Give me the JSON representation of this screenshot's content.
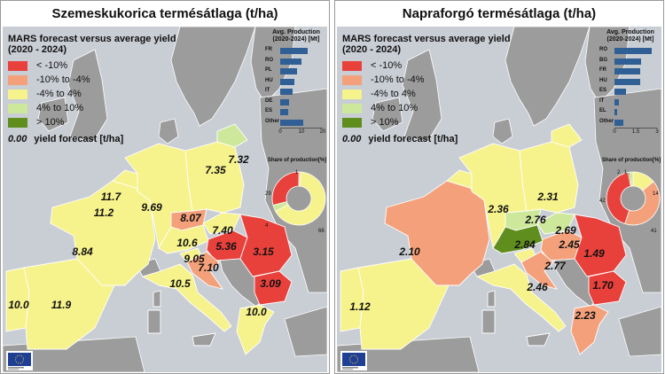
{
  "legend": {
    "title": "MARS forecast versus average yield",
    "subtitle": "(2020 - 2024)",
    "classes": [
      {
        "label": "< -10%",
        "color": "#e8413c"
      },
      {
        "label": "-10% to -4%",
        "color": "#f4a07a"
      },
      {
        "label": "-4% to 4%",
        "color": "#f6f28c"
      },
      {
        "label": "4% to 10%",
        "color": "#cde89a"
      },
      {
        "label": "> 10%",
        "color": "#5f8d1e"
      }
    ],
    "note_number": "0.00",
    "note_text": "yield forecast [t/ha]"
  },
  "colors": {
    "sea": "#c9cdd4",
    "non_eu_land": "#9c9c9c",
    "border": "#ffffff",
    "bar": "#2f5f94",
    "donut_light": "#f6f28c",
    "donut_dark": "#e8413c",
    "donut_orange": "#f4a07a"
  },
  "panels": [
    {
      "title": "Szemeskukorica termésátlaga (t/ha)",
      "production": {
        "title_line1": "Avg. Production",
        "title_line2": "(2020-2024) [Mt]",
        "axis_max": 20,
        "ticks": [
          "0",
          "10",
          "20"
        ],
        "items": [
          {
            "code": "FR",
            "value": 13.0
          },
          {
            "code": "RO",
            "value": 10.2
          },
          {
            "code": "PL",
            "value": 7.8
          },
          {
            "code": "HU",
            "value": 6.8
          },
          {
            "code": "IT",
            "value": 5.7
          },
          {
            "code": "DE",
            "value": 4.1
          },
          {
            "code": "ES",
            "value": 3.8
          },
          {
            "code": "Other",
            "value": 11.0
          }
        ]
      },
      "share": {
        "title": "Share of production[%]",
        "segments": [
          {
            "label": "1",
            "value": 1,
            "color": "#f4a07a"
          },
          {
            "label": "66",
            "value": 66,
            "color": "#f6f28c"
          },
          {
            "label": "4",
            "value": 4,
            "color": "#cde89a"
          },
          {
            "label": "29",
            "value": 29,
            "color": "#e8413c"
          }
        ]
      },
      "regions": [
        {
          "name": "portugal",
          "cls": 2
        },
        {
          "name": "spain",
          "cls": 2
        },
        {
          "name": "france",
          "cls": 2
        },
        {
          "name": "benelux",
          "cls": 2
        },
        {
          "name": "germany",
          "cls": 2
        },
        {
          "name": "poland",
          "cls": 2
        },
        {
          "name": "lithuania",
          "cls": 3
        },
        {
          "name": "czechia",
          "cls": 1
        },
        {
          "name": "austria",
          "cls": 2
        },
        {
          "name": "slovakia",
          "cls": 2
        },
        {
          "name": "hungary",
          "cls": 0
        },
        {
          "name": "slovenia",
          "cls": 2
        },
        {
          "name": "croatia",
          "cls": 1
        },
        {
          "name": "romania",
          "cls": 0
        },
        {
          "name": "bulgaria",
          "cls": 0
        },
        {
          "name": "italy",
          "cls": 2
        },
        {
          "name": "greece",
          "cls": 2
        }
      ],
      "values": [
        {
          "id": "portugal",
          "text": "10.0"
        },
        {
          "id": "spain",
          "text": "11.9"
        },
        {
          "id": "france",
          "text": "8.84"
        },
        {
          "id": "belgium",
          "text": "11.7"
        },
        {
          "id": "netherlands",
          "text": "11.2"
        },
        {
          "id": "germany",
          "text": "9.69"
        },
        {
          "id": "poland",
          "text": "7.35"
        },
        {
          "id": "lithuania",
          "text": "7.32"
        },
        {
          "id": "czechia",
          "text": "8.07"
        },
        {
          "id": "slovakia",
          "text": "7.40"
        },
        {
          "id": "austria",
          "text": "10.6"
        },
        {
          "id": "hungary",
          "text": "5.36"
        },
        {
          "id": "slovenia",
          "text": "9.05"
        },
        {
          "id": "croatia",
          "text": "7.10"
        },
        {
          "id": "italy",
          "text": "10.5"
        },
        {
          "id": "romania",
          "text": "3.15"
        },
        {
          "id": "bulgaria",
          "text": "3.09"
        },
        {
          "id": "greece",
          "text": "10.0"
        }
      ]
    },
    {
      "title": "Napraforgó termésátlaga (t/ha)",
      "production": {
        "title_line1": "Avg. Production",
        "title_line2": "(2020-2024) [Mt]",
        "axis_max": 3,
        "ticks": [
          "0",
          "1.5",
          "3"
        ],
        "items": [
          {
            "code": "RO",
            "value": 2.6
          },
          {
            "code": "BG",
            "value": 1.9
          },
          {
            "code": "FR",
            "value": 1.8
          },
          {
            "code": "HU",
            "value": 1.8
          },
          {
            "code": "ES",
            "value": 0.8
          },
          {
            "code": "IT",
            "value": 0.3
          },
          {
            "code": "EL",
            "value": 0.2
          },
          {
            "code": "Other",
            "value": 0.6
          }
        ]
      },
      "share": {
        "title": "Share of production[%]",
        "segments": [
          {
            "label": "14",
            "value": 14,
            "color": "#f6f28c"
          },
          {
            "label": "41",
            "value": 41,
            "color": "#f4a07a"
          },
          {
            "label": "42",
            "value": 42,
            "color": "#e8413c"
          },
          {
            "label": "1",
            "value": 1,
            "color": "#5f8d1e"
          },
          {
            "label": "2",
            "value": 2,
            "color": "#cde89a"
          }
        ]
      },
      "regions": [
        {
          "name": "portugal",
          "cls": 2
        },
        {
          "name": "spain",
          "cls": 2
        },
        {
          "name": "france",
          "cls": 1
        },
        {
          "name": "benelux",
          "cls": 2
        },
        {
          "name": "germany",
          "cls": 2
        },
        {
          "name": "poland",
          "cls": 2
        },
        {
          "name": "lithuania",
          "cls": 2
        },
        {
          "name": "czechia",
          "cls": 3
        },
        {
          "name": "austria",
          "cls": 4
        },
        {
          "name": "slovakia",
          "cls": 3
        },
        {
          "name": "hungary",
          "cls": 1
        },
        {
          "name": "slovenia",
          "cls": 2
        },
        {
          "name": "croatia",
          "cls": 1
        },
        {
          "name": "romania",
          "cls": 0
        },
        {
          "name": "bulgaria",
          "cls": 0
        },
        {
          "name": "italy",
          "cls": 2
        },
        {
          "name": "greece",
          "cls": 1
        }
      ],
      "values": [
        {
          "id": "spain",
          "text": "1.12"
        },
        {
          "id": "france",
          "text": "2.10"
        },
        {
          "id": "germany",
          "text": "2.36"
        },
        {
          "id": "poland",
          "text": "2.31"
        },
        {
          "id": "czechia",
          "text": "2.76"
        },
        {
          "id": "slovakia",
          "text": "2.69"
        },
        {
          "id": "austria",
          "text": "2.84"
        },
        {
          "id": "hungary",
          "text": "2.45"
        },
        {
          "id": "croatia",
          "text": "2.77"
        },
        {
          "id": "italy",
          "text": "2.46"
        },
        {
          "id": "romania",
          "text": "1.49"
        },
        {
          "id": "bulgaria",
          "text": "1.70"
        },
        {
          "id": "greece",
          "text": "2.23"
        }
      ]
    }
  ]
}
